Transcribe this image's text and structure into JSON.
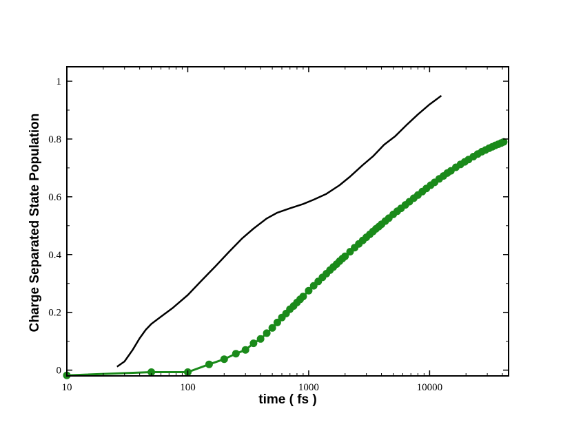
{
  "chart_data": {
    "type": "line",
    "title": "",
    "xlabel": "time ( fs )",
    "ylabel": "Charge Separated State Population",
    "x_scale": "log",
    "xlim": [
      10,
      45000
    ],
    "ylim": [
      -0.02,
      1.05
    ],
    "grid": false,
    "legend": "none",
    "x_ticks": [
      10,
      100,
      1000,
      10000
    ],
    "x_tick_labels": [
      "10",
      "100",
      "1000",
      "10000"
    ],
    "y_ticks": [
      0,
      0.2,
      0.4,
      0.6,
      0.8,
      1
    ],
    "y_tick_labels": [
      "0",
      "0.2",
      "0.4",
      "0.6",
      "0.8",
      "1"
    ],
    "series": [
      {
        "color": "#000000",
        "marker": "none",
        "x": [
          26,
          30,
          35,
          40,
          45,
          50,
          60,
          75,
          100,
          130,
          170,
          220,
          280,
          350,
          450,
          550,
          700,
          900,
          1100,
          1400,
          1800,
          2200,
          2800,
          3400,
          4200,
          5200,
          6500,
          8000,
          10000,
          12500
        ],
        "y": [
          0.012,
          0.03,
          0.07,
          0.11,
          0.14,
          0.16,
          0.185,
          0.215,
          0.26,
          0.31,
          0.36,
          0.41,
          0.455,
          0.49,
          0.525,
          0.545,
          0.56,
          0.575,
          0.59,
          0.61,
          0.64,
          0.67,
          0.71,
          0.74,
          0.78,
          0.81,
          0.85,
          0.885,
          0.92,
          0.95
        ]
      },
      {
        "color": "#1a8a1a",
        "marker": "circle",
        "x": [
          10,
          50,
          100,
          150,
          200,
          250,
          300,
          350,
          400,
          450,
          500,
          550,
          600,
          650,
          700,
          750,
          800,
          850,
          900,
          1000,
          1100,
          1200,
          1300,
          1400,
          1500,
          1600,
          1700,
          1800,
          1900,
          2000,
          2200,
          2400,
          2600,
          2800,
          3000,
          3200,
          3400,
          3600,
          3800,
          4000,
          4300,
          4600,
          5000,
          5400,
          5800,
          6300,
          6800,
          7400,
          8000,
          8700,
          9400,
          10200,
          11000,
          12000,
          13000,
          14000,
          15000,
          16500,
          18000,
          19500,
          21000,
          23000,
          25000,
          27000,
          29000,
          31000,
          33000,
          35000,
          37000,
          39000,
          41000
        ],
        "y": [
          -0.018,
          -0.007,
          -0.007,
          0.02,
          0.038,
          0.057,
          0.07,
          0.093,
          0.108,
          0.128,
          0.146,
          0.165,
          0.182,
          0.196,
          0.211,
          0.222,
          0.234,
          0.245,
          0.255,
          0.275,
          0.292,
          0.307,
          0.321,
          0.334,
          0.346,
          0.357,
          0.367,
          0.377,
          0.386,
          0.394,
          0.41,
          0.424,
          0.437,
          0.449,
          0.46,
          0.47,
          0.48,
          0.489,
          0.497,
          0.505,
          0.516,
          0.526,
          0.539,
          0.55,
          0.56,
          0.572,
          0.583,
          0.595,
          0.606,
          0.618,
          0.629,
          0.64,
          0.65,
          0.662,
          0.672,
          0.682,
          0.69,
          0.702,
          0.712,
          0.721,
          0.729,
          0.739,
          0.748,
          0.756,
          0.762,
          0.768,
          0.773,
          0.778,
          0.782,
          0.786,
          0.79
        ]
      }
    ]
  }
}
